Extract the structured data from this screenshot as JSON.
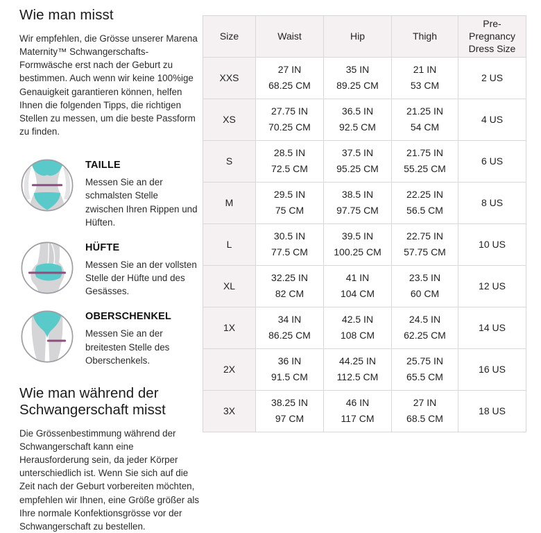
{
  "how_to_measure": {
    "title": "Wie man misst",
    "intro": "Wir empfehlen, die Grösse unserer Marena Maternity™ Schwangerschafts-Formwäsche erst nach der Geburt zu bestimmen. Auch wenn wir keine 100%ige Genauigkeit garantieren können, helfen Ihnen die folgenden Tipps, die richtigen Stellen zu messen, um die beste Passform zu finden."
  },
  "measurements": [
    {
      "title": "TAILLE",
      "text": "Messen Sie an der schmalsten Stelle zwischen Ihren Rippen und Hüften."
    },
    {
      "title": "HÜFTE",
      "text": "Messen Sie an der vollsten Stelle der Hüfte und des Gesässes."
    },
    {
      "title": "OBERSCHENKEL",
      "text": "Messen Sie an der breitesten Stelle des Oberschenkels."
    }
  ],
  "pregnancy_section": {
    "title": "Wie man während der Schwangerschaft misst",
    "text": "Die Grössenbestimmung während der Schwangerschaft kann eine Herausforderung sein, da jeder Körper unterschiedlich ist. Wenn Sie sich auf die Zeit nach der Geburt vorbereiten möchten, empfehlen wir Ihnen, eine Größe größer als Ihre normale Konfektionsgrösse vor der Schwangerschaft zu bestellen."
  },
  "size_chart": {
    "columns": [
      "Size",
      "Waist",
      "Hip",
      "Thigh",
      "Pre-Pregnancy Dress Size"
    ],
    "rows": [
      {
        "size": "XXS",
        "waist_in": "27 IN",
        "waist_cm": "68.25 CM",
        "hip_in": "35 IN",
        "hip_cm": "89.25 CM",
        "thigh_in": "21 IN",
        "thigh_cm": "53 CM",
        "dress": "2 US"
      },
      {
        "size": "XS",
        "waist_in": "27.75 IN",
        "waist_cm": "70.25 CM",
        "hip_in": "36.5 IN",
        "hip_cm": "92.5 CM",
        "thigh_in": "21.25 IN",
        "thigh_cm": "54 CM",
        "dress": "4 US"
      },
      {
        "size": "S",
        "waist_in": "28.5 IN",
        "waist_cm": "72.5 CM",
        "hip_in": "37.5 IN",
        "hip_cm": "95.25 CM",
        "thigh_in": "21.75 IN",
        "thigh_cm": "55.25 CM",
        "dress": "6 US"
      },
      {
        "size": "M",
        "waist_in": "29.5 IN",
        "waist_cm": "75 CM",
        "hip_in": "38.5 IN",
        "hip_cm": "97.75 CM",
        "thigh_in": "22.25 IN",
        "thigh_cm": "56.5 CM",
        "dress": "8 US"
      },
      {
        "size": "L",
        "waist_in": "30.5 IN",
        "waist_cm": "77.5 CM",
        "hip_in": "39.5 IN",
        "hip_cm": "100.25 CM",
        "thigh_in": "22.75 IN",
        "thigh_cm": "57.75 CM",
        "dress": "10 US"
      },
      {
        "size": "XL",
        "waist_in": "32.25 IN",
        "waist_cm": "82 CM",
        "hip_in": "41 IN",
        "hip_cm": "104 CM",
        "thigh_in": "23.5 IN",
        "thigh_cm": "60 CM",
        "dress": "12 US"
      },
      {
        "size": "1X",
        "waist_in": "34 IN",
        "waist_cm": "86.25 CM",
        "hip_in": "42.5 IN",
        "hip_cm": "108 CM",
        "thigh_in": "24.5 IN",
        "thigh_cm": "62.25 CM",
        "dress": "14 US"
      },
      {
        "size": "2X",
        "waist_in": "36 IN",
        "waist_cm": "91.5 CM",
        "hip_in": "44.25 IN",
        "hip_cm": "112.5 CM",
        "thigh_in": "25.75 IN",
        "thigh_cm": "65.5 CM",
        "dress": "16 US"
      },
      {
        "size": "3X",
        "waist_in": "38.25 IN",
        "waist_cm": "97 CM",
        "hip_in": "46 IN",
        "hip_cm": "117 CM",
        "thigh_in": "27 IN",
        "thigh_cm": "68.5 CM",
        "dress": "18 US"
      }
    ]
  },
  "colors": {
    "accent_teal": "#5ac9c9",
    "accent_purple": "#8d4e7d",
    "body_gray": "#d5d5d7",
    "table_header_bg": "#f5f0f1",
    "table_border": "#d8d8d8"
  }
}
